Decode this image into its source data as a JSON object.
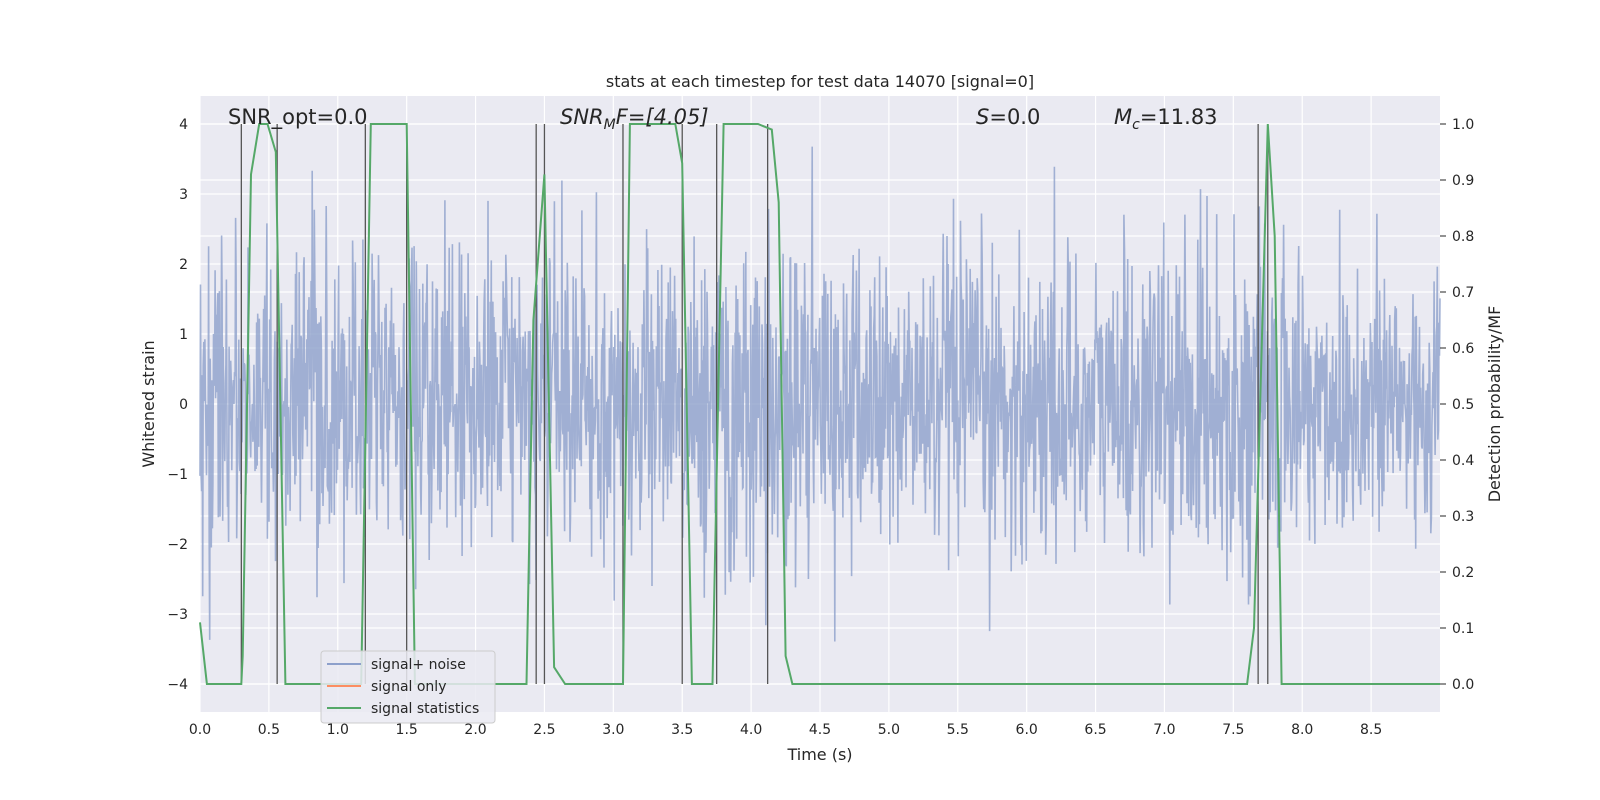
{
  "chart_data": {
    "type": "line",
    "title": "stats at each timestep for test data 14070 [signal=0]",
    "xlabel": "Time (s)",
    "ylabel": "Whitened strain",
    "y2label": "Detection probability/MF",
    "xlim": [
      0.0,
      9.0
    ],
    "ylim": [
      -4.4,
      4.4
    ],
    "y2lim": [
      -0.05,
      1.05
    ],
    "xticks": [
      "0.0",
      "0.5",
      "1.0",
      "1.5",
      "2.0",
      "2.5",
      "3.0",
      "3.5",
      "4.0",
      "4.5",
      "5.0",
      "5.5",
      "6.0",
      "6.5",
      "7.0",
      "7.5",
      "8.0",
      "8.5"
    ],
    "yticks": [
      "−4",
      "−3",
      "−2",
      "−1",
      "0",
      "1",
      "2",
      "3",
      "4"
    ],
    "y2ticks": [
      "0.0",
      "0.1",
      "0.2",
      "0.3",
      "0.4",
      "0.5",
      "0.6",
      "0.7",
      "0.8",
      "0.9",
      "1.0"
    ],
    "grid": true,
    "legend_position": "lower-left",
    "annotations": {
      "snr_opt": "SNR_opt=0.0",
      "snr_mf_main": "SNR",
      "snr_mf_sub": "M",
      "snr_mf_rest": "F=[4.05]",
      "s_italic": "S",
      "s_rest": "=0.0",
      "mc_main": "M",
      "mc_sub": "c",
      "mc_rest": "=11.83"
    },
    "series": [
      {
        "name": "signal+ noise",
        "color": "#8da0cb",
        "noise_std": 0.8,
        "noise_peak": 3.3
      },
      {
        "name": "signal only",
        "color": "#fc8d62",
        "values": []
      },
      {
        "name": "signal statistics",
        "color": "#55a868",
        "axis": "right",
        "points": [
          [
            0.0,
            0.11
          ],
          [
            0.05,
            0.0
          ],
          [
            0.1,
            0.0
          ],
          [
            0.3,
            0.0
          ],
          [
            0.31,
            0.05
          ],
          [
            0.37,
            0.91
          ],
          [
            0.43,
            1.0
          ],
          [
            0.49,
            1.0
          ],
          [
            0.55,
            0.95
          ],
          [
            0.62,
            0.0
          ],
          [
            0.65,
            0.0
          ],
          [
            1.17,
            0.0
          ],
          [
            1.24,
            1.0
          ],
          [
            1.3,
            1.0
          ],
          [
            1.5,
            1.0
          ],
          [
            1.56,
            0.0
          ],
          [
            1.6,
            0.0
          ],
          [
            2.37,
            0.0
          ],
          [
            2.42,
            0.65
          ],
          [
            2.5,
            0.91
          ],
          [
            2.57,
            0.03
          ],
          [
            2.65,
            0.0
          ],
          [
            3.07,
            0.0
          ],
          [
            3.12,
            1.0
          ],
          [
            3.2,
            1.0
          ],
          [
            3.45,
            1.0
          ],
          [
            3.5,
            0.93
          ],
          [
            3.57,
            0.0
          ],
          [
            3.63,
            0.0
          ],
          [
            3.72,
            0.0
          ],
          [
            3.8,
            1.0
          ],
          [
            3.9,
            1.0
          ],
          [
            4.05,
            1.0
          ],
          [
            4.15,
            0.99
          ],
          [
            4.2,
            0.86
          ],
          [
            4.25,
            0.05
          ],
          [
            4.3,
            0.0
          ],
          [
            4.5,
            0.0
          ],
          [
            7.6,
            0.0
          ],
          [
            7.65,
            0.1
          ],
          [
            7.75,
            1.0
          ],
          [
            7.8,
            0.8
          ],
          [
            7.85,
            0.0
          ],
          [
            8.0,
            0.0
          ],
          [
            9.0,
            0.0
          ]
        ]
      }
    ],
    "vertical_markers": [
      0.3,
      0.56,
      1.2,
      1.5,
      2.44,
      2.5,
      3.07,
      3.5,
      3.75,
      4.12,
      7.68,
      7.75
    ]
  }
}
